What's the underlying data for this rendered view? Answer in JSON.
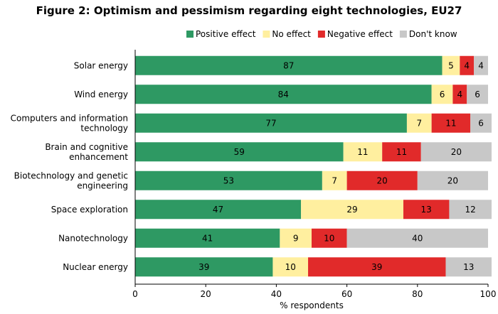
{
  "chart_data": {
    "type": "bar",
    "orientation": "horizontal",
    "stacked": true,
    "title": "Figure 2: Optimism and pessimism regarding eight technologies, EU27",
    "xlabel": "% respondents",
    "ylabel": "",
    "xlim": [
      0,
      100
    ],
    "xticks": [
      0,
      20,
      40,
      60,
      80,
      100
    ],
    "grid": false,
    "legend_position": "top",
    "categories": [
      [
        "Solar energy"
      ],
      [
        "Wind energy"
      ],
      [
        "Computers and information",
        "technology"
      ],
      [
        "Brain and cognitive",
        "enhancement"
      ],
      [
        "Biotechnology and genetic",
        "engineering"
      ],
      [
        "Space exploration"
      ],
      [
        "Nanotechnology"
      ],
      [
        "Nuclear energy"
      ]
    ],
    "series": [
      {
        "name": "Positive effect",
        "color": "#2e9963",
        "values": [
          87,
          84,
          77,
          59,
          53,
          47,
          41,
          39
        ]
      },
      {
        "name": "No effect",
        "color": "#ffef9f",
        "values": [
          5,
          6,
          7,
          11,
          7,
          29,
          9,
          10
        ]
      },
      {
        "name": "Negative effect",
        "color": "#e12a2a",
        "values": [
          4,
          4,
          11,
          11,
          20,
          13,
          10,
          39
        ]
      },
      {
        "name": "Don't know",
        "color": "#c8c8c8",
        "values": [
          4,
          6,
          6,
          20,
          20,
          12,
          40,
          13
        ]
      }
    ]
  }
}
